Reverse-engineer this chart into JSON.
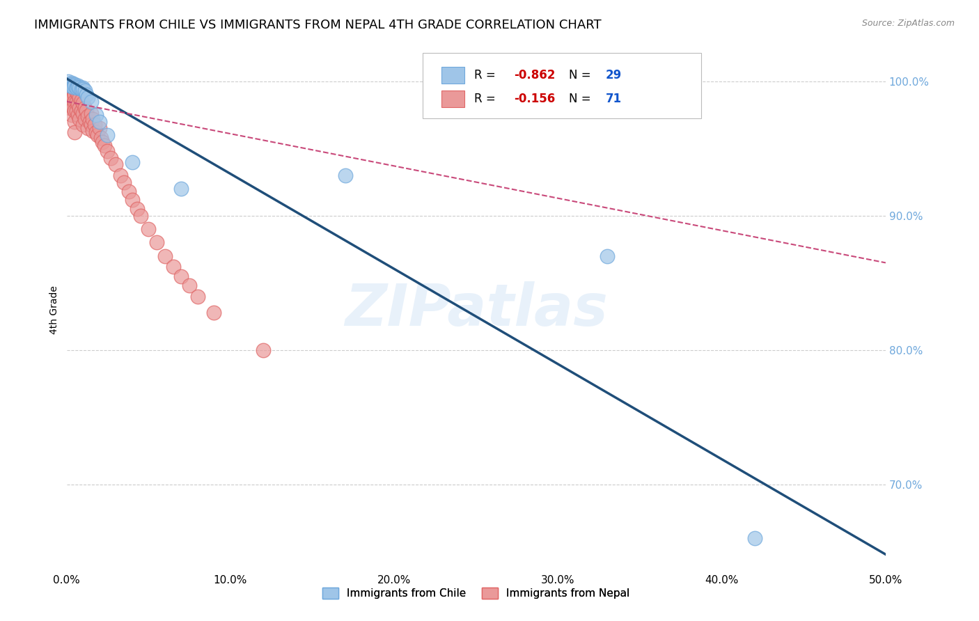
{
  "title": "IMMIGRANTS FROM CHILE VS IMMIGRANTS FROM NEPAL 4TH GRADE CORRELATION CHART",
  "source": "Source: ZipAtlas.com",
  "ylabel": "4th Grade",
  "watermark": "ZIPatlas",
  "xlim": [
    0.0,
    0.5
  ],
  "ylim": [
    0.635,
    1.025
  ],
  "xticks": [
    0.0,
    0.1,
    0.2,
    0.3,
    0.4,
    0.5
  ],
  "xticklabels": [
    "0.0%",
    "10.0%",
    "20.0%",
    "30.0%",
    "40.0%",
    "50.0%"
  ],
  "yticks": [
    0.7,
    0.8,
    0.9,
    1.0
  ],
  "yticklabels": [
    "70.0%",
    "80.0%",
    "90.0%",
    "100.0%"
  ],
  "chile_color": "#9fc5e8",
  "chile_edge": "#6fa8dc",
  "nepal_color": "#ea9999",
  "nepal_edge": "#e06666",
  "chile_R": -0.862,
  "chile_N": 29,
  "nepal_R": -0.156,
  "nepal_N": 71,
  "legend_label_chile": "Immigrants from Chile",
  "legend_label_nepal": "Immigrants from Nepal",
  "chile_line_color": "#1f4e79",
  "nepal_line_color": "#c9497a",
  "grid_color": "#cccccc",
  "background_color": "#ffffff",
  "title_fontsize": 13,
  "axis_label_fontsize": 10,
  "tick_fontsize": 11,
  "right_tick_color": "#6fa8dc",
  "chile_scatter_x": [
    0.001,
    0.002,
    0.002,
    0.003,
    0.003,
    0.004,
    0.004,
    0.005,
    0.005,
    0.006,
    0.006,
    0.007,
    0.007,
    0.008,
    0.009,
    0.01,
    0.01,
    0.011,
    0.012,
    0.013,
    0.015,
    0.018,
    0.02,
    0.025,
    0.04,
    0.07,
    0.33,
    0.42,
    0.17
  ],
  "chile_scatter_y": [
    1.0,
    0.998,
    0.997,
    0.999,
    0.998,
    0.997,
    0.996,
    0.998,
    0.997,
    0.996,
    0.995,
    0.997,
    0.996,
    0.995,
    0.994,
    0.995,
    0.994,
    0.993,
    0.99,
    0.988,
    0.985,
    0.975,
    0.97,
    0.96,
    0.94,
    0.92,
    0.87,
    0.66,
    0.93
  ],
  "nepal_scatter_x": [
    0.001,
    0.001,
    0.001,
    0.002,
    0.002,
    0.002,
    0.002,
    0.002,
    0.003,
    0.003,
    0.003,
    0.003,
    0.003,
    0.004,
    0.004,
    0.004,
    0.005,
    0.005,
    0.005,
    0.005,
    0.005,
    0.005,
    0.006,
    0.006,
    0.006,
    0.007,
    0.007,
    0.007,
    0.008,
    0.008,
    0.008,
    0.009,
    0.009,
    0.01,
    0.01,
    0.01,
    0.011,
    0.011,
    0.012,
    0.013,
    0.013,
    0.014,
    0.015,
    0.015,
    0.016,
    0.016,
    0.017,
    0.018,
    0.019,
    0.02,
    0.021,
    0.022,
    0.023,
    0.025,
    0.027,
    0.03,
    0.033,
    0.035,
    0.038,
    0.04,
    0.043,
    0.045,
    0.05,
    0.055,
    0.06,
    0.065,
    0.07,
    0.075,
    0.08,
    0.09,
    0.12
  ],
  "nepal_scatter_y": [
    0.995,
    0.992,
    0.988,
    0.998,
    0.994,
    0.99,
    0.985,
    0.98,
    0.996,
    0.992,
    0.988,
    0.982,
    0.975,
    0.994,
    0.988,
    0.98,
    0.995,
    0.99,
    0.985,
    0.978,
    0.97,
    0.962,
    0.992,
    0.985,
    0.978,
    0.99,
    0.983,
    0.975,
    0.988,
    0.98,
    0.972,
    0.986,
    0.978,
    0.984,
    0.976,
    0.968,
    0.98,
    0.972,
    0.978,
    0.974,
    0.965,
    0.97,
    0.976,
    0.968,
    0.972,
    0.963,
    0.968,
    0.962,
    0.96,
    0.965,
    0.958,
    0.955,
    0.952,
    0.948,
    0.943,
    0.938,
    0.93,
    0.925,
    0.918,
    0.912,
    0.905,
    0.9,
    0.89,
    0.88,
    0.87,
    0.862,
    0.855,
    0.848,
    0.84,
    0.828,
    0.8
  ],
  "chile_line_x": [
    0.0,
    0.5
  ],
  "chile_line_y": [
    1.002,
    0.648
  ],
  "nepal_line_x": [
    0.0,
    0.5
  ],
  "nepal_line_y": [
    0.985,
    0.865
  ]
}
